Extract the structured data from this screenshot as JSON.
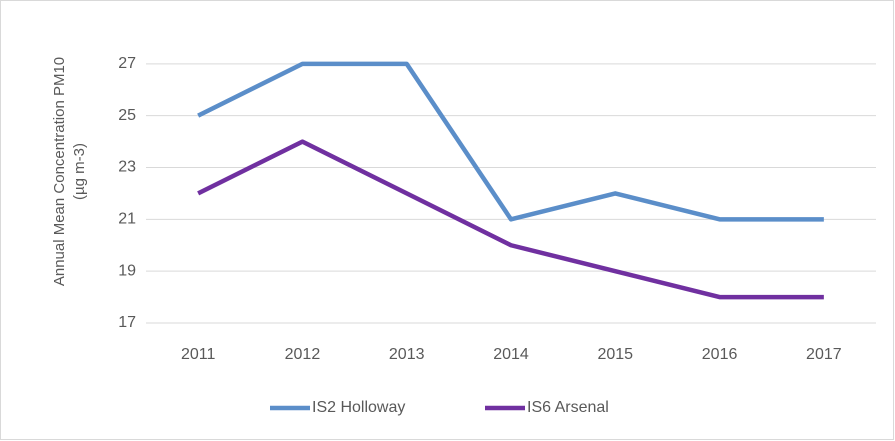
{
  "chart_data": {
    "type": "line",
    "ylabel": [
      "Annual Mean Concentration PM10",
      "(µg m-3)"
    ],
    "categories": [
      "2011",
      "2012",
      "2013",
      "2014",
      "2015",
      "2016",
      "2017"
    ],
    "series": [
      {
        "name": "IS2 Holloway",
        "color": "#5b8ec9",
        "values": [
          25,
          27,
          27,
          21,
          22,
          21,
          21
        ]
      },
      {
        "name": "IS6 Arsenal",
        "color": "#7030a0",
        "values": [
          22,
          24,
          22,
          20,
          19,
          18,
          18
        ]
      }
    ],
    "ylim": [
      17,
      29
    ],
    "yticks": [
      17,
      19,
      21,
      23,
      25,
      27
    ],
    "grid": true,
    "legend": "bottom"
  }
}
